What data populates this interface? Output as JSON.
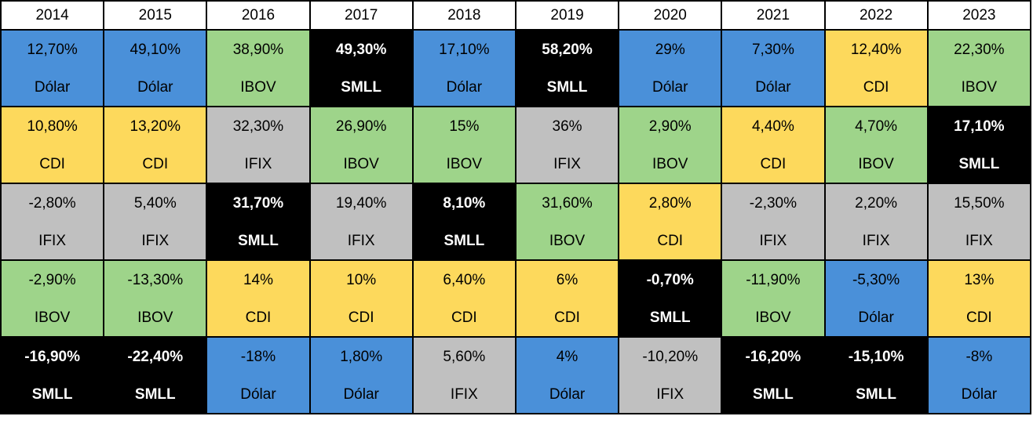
{
  "chart_data": {
    "type": "table",
    "years": [
      "2014",
      "2015",
      "2016",
      "2017",
      "2018",
      "2019",
      "2020",
      "2021",
      "2022",
      "2023"
    ],
    "rows": [
      [
        {
          "value": "12,70%",
          "asset": "Dólar"
        },
        {
          "value": "49,10%",
          "asset": "Dólar"
        },
        {
          "value": "38,90%",
          "asset": "IBOV"
        },
        {
          "value": "49,30%",
          "asset": "SMLL"
        },
        {
          "value": "17,10%",
          "asset": "Dólar"
        },
        {
          "value": "58,20%",
          "asset": "SMLL"
        },
        {
          "value": "29%",
          "asset": "Dólar"
        },
        {
          "value": "7,30%",
          "asset": "Dólar"
        },
        {
          "value": "12,40%",
          "asset": "CDI"
        },
        {
          "value": "22,30%",
          "asset": "IBOV"
        }
      ],
      [
        {
          "value": "10,80%",
          "asset": "CDI"
        },
        {
          "value": "13,20%",
          "asset": "CDI"
        },
        {
          "value": "32,30%",
          "asset": "IFIX"
        },
        {
          "value": "26,90%",
          "asset": "IBOV"
        },
        {
          "value": "15%",
          "asset": "IBOV"
        },
        {
          "value": "36%",
          "asset": "IFIX"
        },
        {
          "value": "2,90%",
          "asset": "IBOV"
        },
        {
          "value": "4,40%",
          "asset": "CDI"
        },
        {
          "value": "4,70%",
          "asset": "IBOV"
        },
        {
          "value": "17,10%",
          "asset": "SMLL"
        }
      ],
      [
        {
          "value": "-2,80%",
          "asset": "IFIX"
        },
        {
          "value": "5,40%",
          "asset": "IFIX"
        },
        {
          "value": "31,70%",
          "asset": "SMLL"
        },
        {
          "value": "19,40%",
          "asset": "IFIX"
        },
        {
          "value": "8,10%",
          "asset": "SMLL"
        },
        {
          "value": "31,60%",
          "asset": "IBOV"
        },
        {
          "value": "2,80%",
          "asset": "CDI"
        },
        {
          "value": "-2,30%",
          "asset": "IFIX"
        },
        {
          "value": "2,20%",
          "asset": "IFIX"
        },
        {
          "value": "15,50%",
          "asset": "IFIX"
        }
      ],
      [
        {
          "value": "-2,90%",
          "asset": "IBOV"
        },
        {
          "value": "-13,30%",
          "asset": "IBOV"
        },
        {
          "value": "14%",
          "asset": "CDI"
        },
        {
          "value": "10%",
          "asset": "CDI"
        },
        {
          "value": "6,40%",
          "asset": "CDI"
        },
        {
          "value": "6%",
          "asset": "CDI"
        },
        {
          "value": "-0,70%",
          "asset": "SMLL"
        },
        {
          "value": "-11,90%",
          "asset": "IBOV"
        },
        {
          "value": "-5,30%",
          "asset": "Dólar"
        },
        {
          "value": "13%",
          "asset": "CDI"
        }
      ],
      [
        {
          "value": "-16,90%",
          "asset": "SMLL"
        },
        {
          "value": "-22,40%",
          "asset": "SMLL"
        },
        {
          "value": "-18%",
          "asset": "Dólar"
        },
        {
          "value": "1,80%",
          "asset": "Dólar"
        },
        {
          "value": "5,60%",
          "asset": "IFIX"
        },
        {
          "value": "4%",
          "asset": "Dólar"
        },
        {
          "value": "-10,20%",
          "asset": "IFIX"
        },
        {
          "value": "-16,20%",
          "asset": "SMLL"
        },
        {
          "value": "-15,10%",
          "asset": "SMLL"
        },
        {
          "value": "-8%",
          "asset": "Dólar"
        }
      ]
    ],
    "asset_colors": {
      "Dólar": {
        "bg": "#4a90d9",
        "fg": "#000000"
      },
      "IBOV": {
        "bg": "#9ed48a",
        "fg": "#000000"
      },
      "SMLL": {
        "bg": "#000000",
        "fg": "#ffffff"
      },
      "CDI": {
        "bg": "#fdd95c",
        "fg": "#000000"
      },
      "IFIX": {
        "bg": "#c0c0c0",
        "fg": "#000000"
      }
    }
  }
}
